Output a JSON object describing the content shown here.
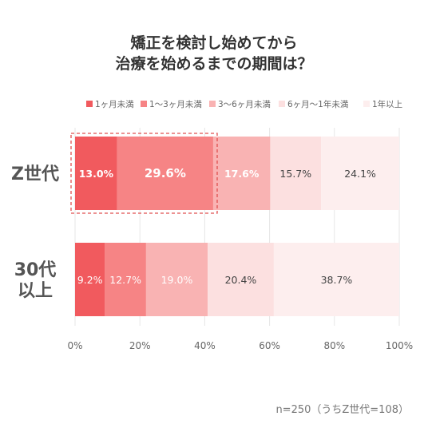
{
  "chart_data": {
    "type": "bar",
    "orientation": "horizontal-stacked-100",
    "title_lines": [
      "矯正を検討し始めてから",
      "治療を始めるまでの期間は？"
    ],
    "categories": [
      "Z世代",
      "30代\n以上"
    ],
    "series": [
      {
        "name": "1ヶ月未満",
        "values": [
          13.0,
          9.2
        ],
        "labels": [
          "13.0%",
          "9.2%"
        ],
        "color": "#f15a5e"
      },
      {
        "name": "1～3ヶ月未満",
        "values": [
          29.6,
          12.7
        ],
        "labels": [
          "29.6%",
          "12.7%"
        ],
        "color": "#f68485"
      },
      {
        "name": "3～6ヶ月未満",
        "values": [
          17.6,
          19.0
        ],
        "labels": [
          "17.6%",
          "19.0%"
        ],
        "color": "#f9b3b3"
      },
      {
        "name": "6ヶ月～1年未満",
        "values": [
          15.7,
          20.4
        ],
        "labels": [
          "15.7%",
          "20.4%"
        ],
        "color": "#fce0e0"
      },
      {
        "name": "1年以上",
        "values": [
          24.1,
          38.7
        ],
        "labels": [
          "24.1%",
          "38.7%"
        ],
        "color": "#fdeeee"
      }
    ],
    "x_ticks": [
      "0%",
      "20%",
      "40%",
      "60%",
      "80%",
      "100%"
    ],
    "xlim": [
      0,
      100
    ],
    "legend_position": "top",
    "highlight": "Z世代: 1ヶ月未満 + 1～3ヶ月未満 (dashed box)",
    "note": "n=250（うちZ世代=108）"
  }
}
